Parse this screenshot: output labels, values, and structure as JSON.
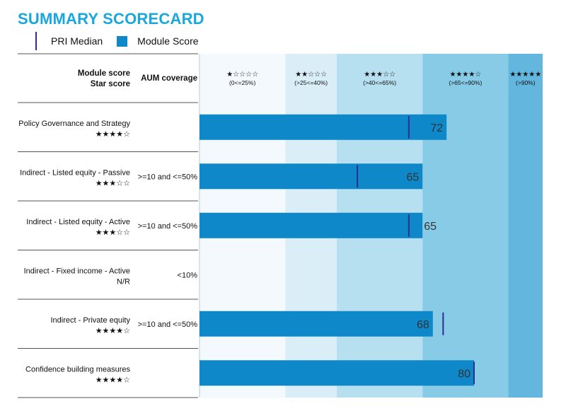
{
  "title": "SUMMARY SCORECARD",
  "legend": {
    "median": "PRI Median",
    "score": "Module Score"
  },
  "header": {
    "module_score": "Module score",
    "star_score": "Star score",
    "aum_coverage": "AUM coverage"
  },
  "bands": [
    {
      "stars": "★☆☆☆☆",
      "range": "(0<=25%)",
      "from": 0,
      "to": 25,
      "color": "#f3f9fd"
    },
    {
      "stars": "★★☆☆☆",
      "range": "(>25<=40%)",
      "from": 25,
      "to": 40,
      "color": "#daeef8"
    },
    {
      "stars": "★★★☆☆",
      "range": "(>40<=65%)",
      "from": 40,
      "to": 65,
      "color": "#b6dff0"
    },
    {
      "stars": "★★★★☆",
      "range": "(>65<=90%)",
      "from": 65,
      "to": 90,
      "color": "#87cbe7"
    },
    {
      "stars": "★★★★★",
      "range": "(>90%)",
      "from": 90,
      "to": 100,
      "color": "#63b7de"
    }
  ],
  "colors": {
    "bar": "#0e88c8",
    "median": "#2c2f8f",
    "title": "#1aa7de"
  },
  "chart_data": {
    "type": "bar",
    "orientation": "horizontal",
    "xlim": [
      0,
      100
    ],
    "categories": [
      "Policy Governance and Strategy",
      "Indirect - Listed equity - Passive",
      "Indirect - Listed equity - Active",
      "Indirect - Fixed income - Active",
      "Indirect - Private equity",
      "Confidence building measures"
    ],
    "star_scores": [
      "★★★★☆",
      "★★★☆☆",
      "★★★☆☆",
      "N/R",
      "★★★★☆",
      "★★★★☆"
    ],
    "aum_coverage": [
      "",
      ">=10 and <=50%",
      ">=10 and <=50%",
      "<10%",
      ">=10 and <=50%",
      ""
    ],
    "series": [
      {
        "name": "Module Score",
        "values": [
          72,
          65,
          65,
          null,
          68,
          80
        ]
      },
      {
        "name": "PRI Median",
        "values": [
          61,
          46,
          61,
          null,
          71,
          80
        ]
      }
    ]
  }
}
